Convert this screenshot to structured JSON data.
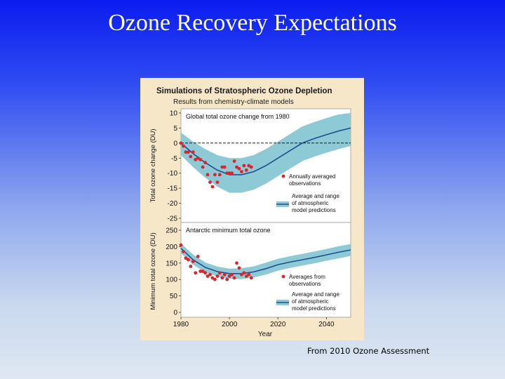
{
  "slide": {
    "title": "Ozone Recovery Expectations",
    "caption": "From 2010 Ozone Assessment"
  },
  "figure": {
    "title": "Simulations of Stratospheric Ozone Depletion",
    "subtitle": "Results from chemistry-climate models",
    "xlabel": "Year"
  },
  "colors": {
    "panel_bg": "#f6e7c9",
    "plot_bg": "#ffffff",
    "band": "#8ec9d6",
    "model_line": "#1f4f8f",
    "observations": "#d7262e",
    "zero_line": "#000000"
  },
  "chart_data": [
    {
      "type": "line",
      "title": "Global total ozone change from 1980",
      "ylabel": "Total ozone change (DU)",
      "xlim": [
        1980,
        2050
      ],
      "ylim": [
        -25,
        10
      ],
      "x_ticks": [
        1980,
        2000,
        2020,
        2040
      ],
      "y_ticks": [
        10,
        5,
        0,
        -5,
        -10,
        -15,
        -20,
        -25
      ],
      "reference_line": 0,
      "legend": [
        "Annually averaged observations",
        "Average and range of atmospheric model predictions"
      ],
      "legend_position": "right",
      "model": {
        "x": [
          1980,
          1985,
          1990,
          1995,
          2000,
          2005,
          2010,
          2015,
          2020,
          2025,
          2030,
          2035,
          2040,
          2045,
          2050
        ],
        "mean": [
          0,
          -3.5,
          -6.5,
          -9,
          -10.5,
          -10.5,
          -9.5,
          -7.5,
          -5,
          -2.5,
          0,
          1.5,
          2.8,
          4,
          5
        ],
        "lower": [
          -4,
          -8,
          -11.5,
          -14.5,
          -16.5,
          -16.5,
          -15.5,
          -13.5,
          -11,
          -8.5,
          -6,
          -4.5,
          -3.2,
          -2,
          -1
        ],
        "upper": [
          3.5,
          0.5,
          -2,
          -4,
          -5,
          -5,
          -4,
          -2,
          0.5,
          3,
          5.5,
          7,
          8.3,
          9.5,
          10
        ]
      },
      "observations": {
        "x": [
          1980,
          1981,
          1982,
          1983,
          1984,
          1985,
          1986,
          1987,
          1988,
          1989,
          1990,
          1991,
          1992,
          1993,
          1994,
          1995,
          1996,
          1997,
          1998,
          1999,
          2000,
          2001,
          2002,
          2003,
          2004,
          2005,
          2006,
          2007,
          2008,
          2009
        ],
        "y": [
          0,
          -1,
          -3,
          -3,
          -4.5,
          -3,
          -5.5,
          -5,
          -5.5,
          -8,
          -6.5,
          -10.5,
          -13,
          -14.5,
          -10.5,
          -13,
          -10.5,
          -8,
          -8,
          -10,
          -10,
          -10,
          -6,
          -8,
          -8.5,
          -9.5,
          -7.5,
          -9,
          -7.5,
          -8
        ]
      }
    },
    {
      "type": "line",
      "title": "Antarctic minimum total ozone",
      "ylabel": "Minimum total ozone (DU)",
      "xlim": [
        1980,
        2050
      ],
      "ylim": [
        0,
        250
      ],
      "x_ticks": [
        1980,
        2000,
        2020,
        2040
      ],
      "y_ticks": [
        250,
        200,
        150,
        100,
        50,
        0
      ],
      "legend": [
        "Averages from observations",
        "Average and range of atmospheric model predictions"
      ],
      "legend_position": "right",
      "model": {
        "x": [
          1980,
          1985,
          1990,
          1995,
          2000,
          2005,
          2010,
          2015,
          2020,
          2025,
          2030,
          2035,
          2040,
          2045,
          2050
        ],
        "mean": [
          195,
          160,
          137,
          124,
          118,
          118,
          123,
          133,
          145,
          153,
          160,
          167,
          175,
          183,
          190
        ],
        "lower": [
          180,
          145,
          122,
          109,
          102,
          101,
          106,
          115,
          127,
          135,
          142,
          149,
          157,
          164,
          172
        ],
        "upper": [
          210,
          176,
          152,
          139,
          133,
          134,
          140,
          151,
          163,
          171,
          178,
          185,
          193,
          201,
          208
        ]
      },
      "observations": {
        "x": [
          1980,
          1981,
          1982,
          1983,
          1984,
          1985,
          1986,
          1987,
          1988,
          1989,
          1990,
          1991,
          1992,
          1993,
          1994,
          1995,
          1996,
          1997,
          1998,
          1999,
          2000,
          2001,
          2002,
          2003,
          2004,
          2005,
          2006,
          2007,
          2008,
          2009
        ],
        "y": [
          205,
          185,
          165,
          160,
          140,
          155,
          120,
          170,
          125,
          125,
          120,
          110,
          115,
          105,
          100,
          110,
          120,
          105,
          115,
          100,
          110,
          115,
          105,
          150,
          135,
          115,
          120,
          110,
          115,
          105
        ]
      }
    }
  ]
}
